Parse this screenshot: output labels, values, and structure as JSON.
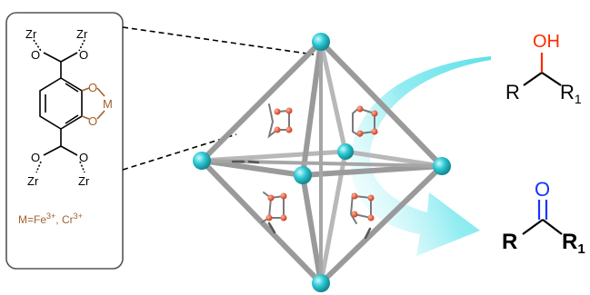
{
  "linker_box": {
    "zr_top_left": "Zr",
    "zr_top_right": "Zr",
    "zr_bottom_left": "Zr",
    "zr_bottom_right": "Zr",
    "o_top_left": "O",
    "o_top_right": "O",
    "o_bottom_left": "O",
    "o_bottom_right": "O",
    "o_chelate_top": "O",
    "o_chelate_bottom": "O",
    "metal_symbol": "M",
    "metal_caption": {
      "prefix": "M=Fe",
      "fe_charge": "3+",
      "separator": ", Cr",
      "cr_charge": "3+"
    }
  },
  "reactant": {
    "hydroxyl": "OH",
    "r": "R",
    "r1_base": "R",
    "r1_sub": "1"
  },
  "product": {
    "carbonyl_o": "O",
    "r": "R",
    "r1_base": "R",
    "r1_sub": "1"
  },
  "colors": {
    "brown": "#a0612a",
    "red": "#ff2a00",
    "blue": "#1435ff",
    "node_cyan": "#2fc9d3",
    "arrow_cyan": "#5fe0e8",
    "strut_gray": "#9a9a9a"
  }
}
